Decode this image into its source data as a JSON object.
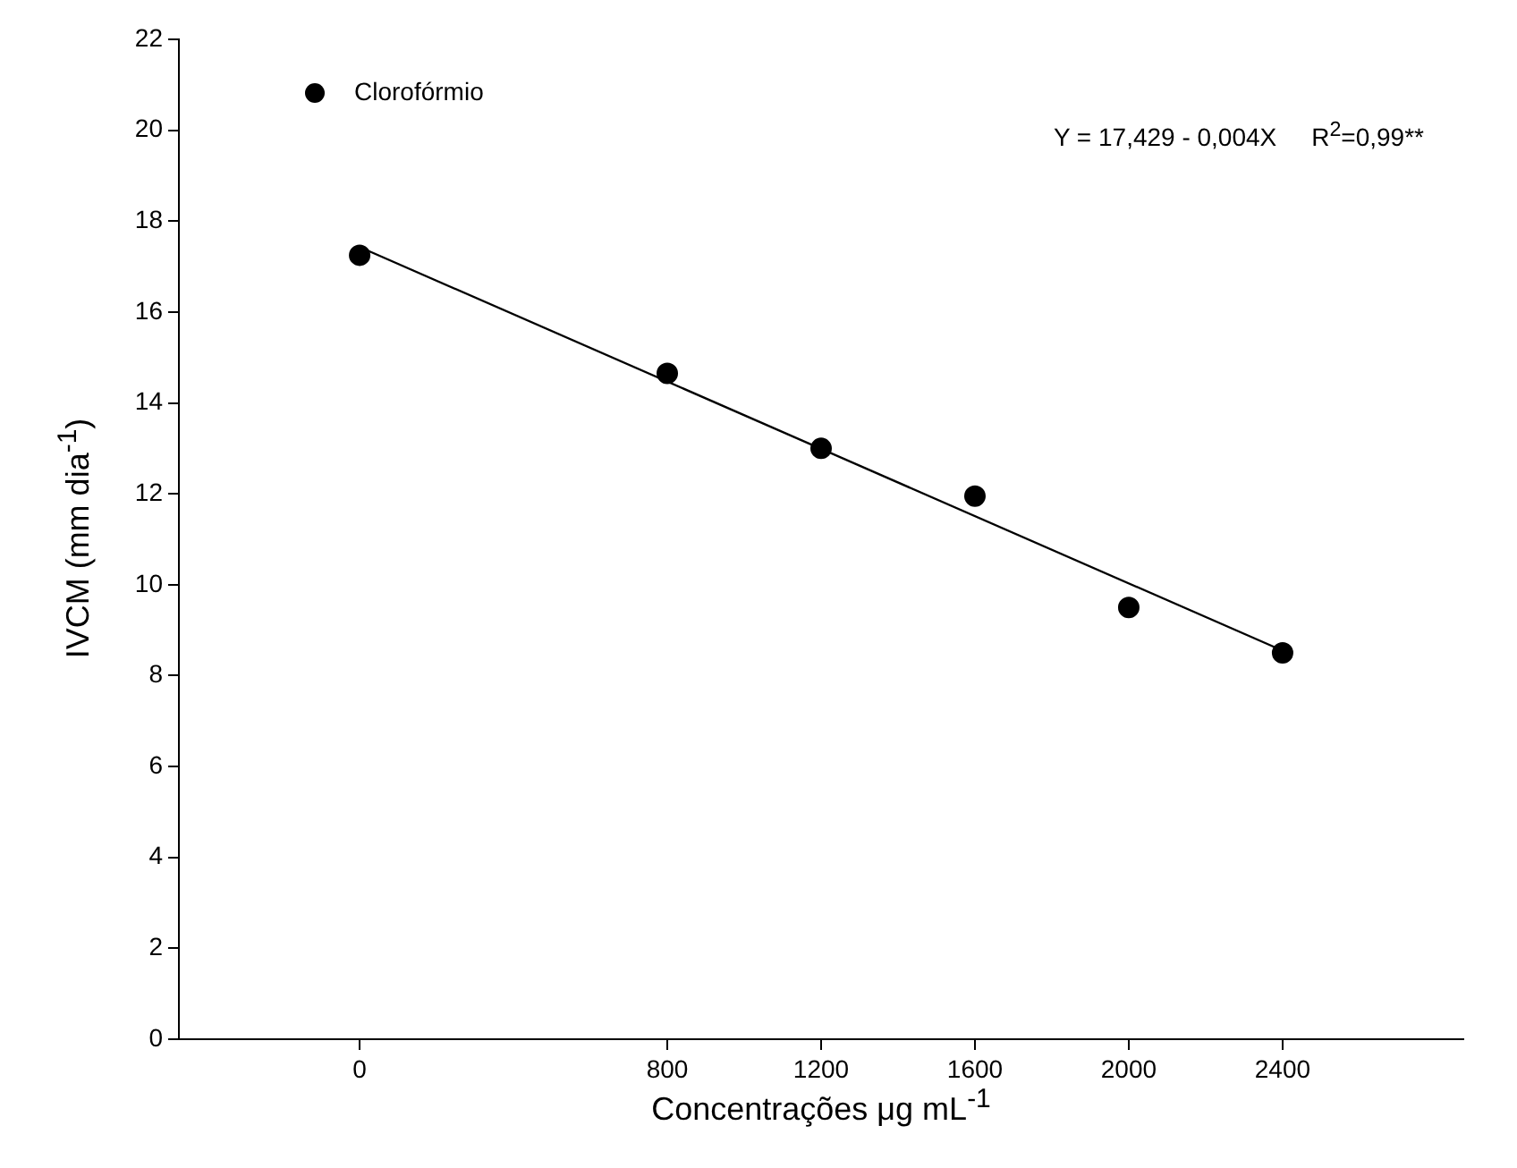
{
  "chart_data": {
    "type": "scatter",
    "xlabel": "Concentrações μg mL$^{-1}$",
    "ylabel": "IVCM (mm dia$^{-1}$)",
    "annotations": [
      "Y = 17,429 - 0,004X     R$^{2}$=0,99**"
    ],
    "x": [
      0,
      800,
      1200,
      1600,
      2000,
      2400
    ],
    "series": [
      {
        "name": "Clorofórmio",
        "color": "#000000",
        "values": [
          17.25,
          14.65,
          13.0,
          11.95,
          9.5,
          8.5
        ]
      },
      {
        "type": "line",
        "color": "#000000",
        "marker": "none",
        "x": [
          0,
          2400
        ],
        "values": [
          17.43,
          8.55
        ]
      }
    ],
    "xlim": [
      -470,
      2870
    ],
    "xticks": [
      0,
      800,
      1200,
      1600,
      2000,
      2400
    ],
    "ylim": [
      0,
      22
    ],
    "yticks": [
      0,
      2,
      4,
      6,
      8,
      10,
      12,
      14,
      16,
      18,
      20,
      22
    ],
    "grid": false,
    "legend": "top left",
    "marker": "circle",
    "line_style": "solid"
  }
}
